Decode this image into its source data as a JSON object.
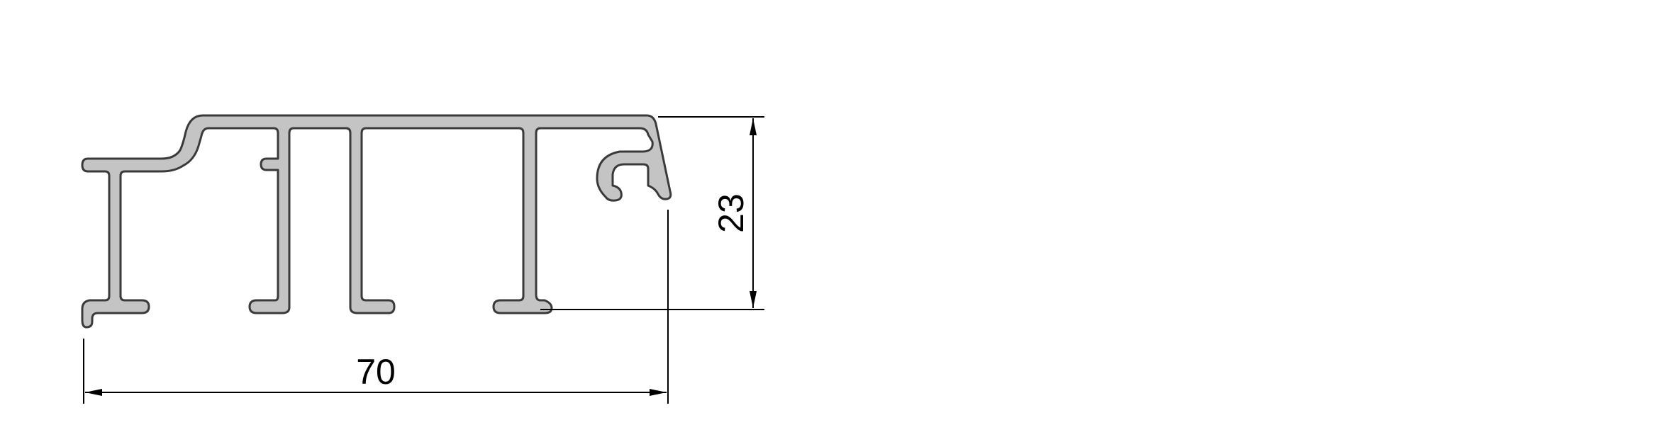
{
  "drawing": {
    "type": "aluminium-profile-section",
    "dimensions": {
      "width_label": "70",
      "height_label": "23"
    },
    "colors": {
      "profile_fill": "#c4c4c4",
      "profile_stroke": "#3a3a3a",
      "dimension_line": "#000000",
      "background": "#ffffff"
    }
  }
}
